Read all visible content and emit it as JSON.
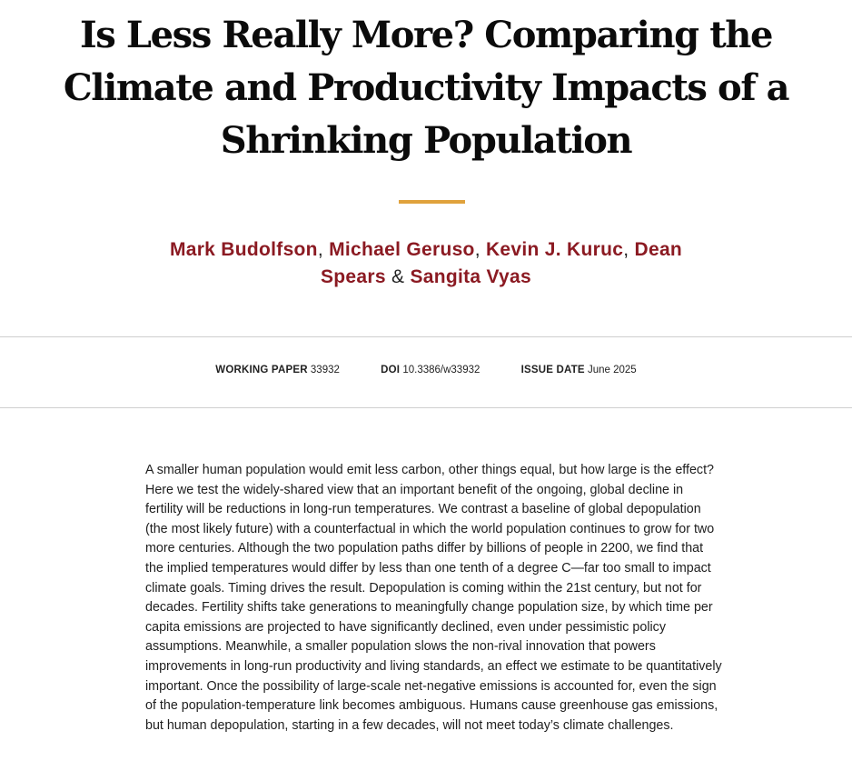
{
  "paper": {
    "title": "Is Less Really More? Comparing the Climate and Productivity Impacts of a Shrinking Population",
    "authors": [
      "Mark Budolfson",
      "Michael Geruso",
      "Kevin J. Kuruc",
      "Dean Spears",
      "Sangita Vyas"
    ],
    "separators": {
      "comma": ", ",
      "ampersand": " & "
    },
    "meta": {
      "working_paper_label": "WORKING PAPER",
      "working_paper_value": "33932",
      "doi_label": "DOI",
      "doi_value": "10.3386/w33932",
      "issue_date_label": "ISSUE DATE",
      "issue_date_value": "June 2025"
    },
    "abstract": "A smaller human population would emit less carbon, other things equal, but how large is the effect? Here we test the widely-shared view that an important benefit of the ongoing, global decline in fertility will be reductions in long-run temperatures. We contrast a baseline of global depopulation (the most likely future) with a counterfactual in which the world population continues to grow for two more centuries. Although the two population paths differ by billions of people in 2200, we find that the implied temperatures would differ by less than one tenth of a degree C—far too small to impact climate goals. Timing drives the result. Depopulation is coming within the 21st century, but not for decades. Fertility shifts take generations to meaningfully change population size, by which time per capita emissions are projected to have significantly declined, even under pessimistic policy assumptions. Meanwhile, a smaller population slows the non-rival innovation that powers improvements in long-run productivity and living standards, an effect we estimate to be quantitatively important. Once the possibility of large-scale net-negative emissions is accounted for, even the sign of the population-temperature link becomes ambiguous. Humans cause greenhouse gas emissions, but human depopulation, starting in a few decades, will not meet today’s climate challenges."
  },
  "colors": {
    "accent_rule": "#e0a23c",
    "author_link": "#8b1a22",
    "divider": "#cfcfcf"
  }
}
